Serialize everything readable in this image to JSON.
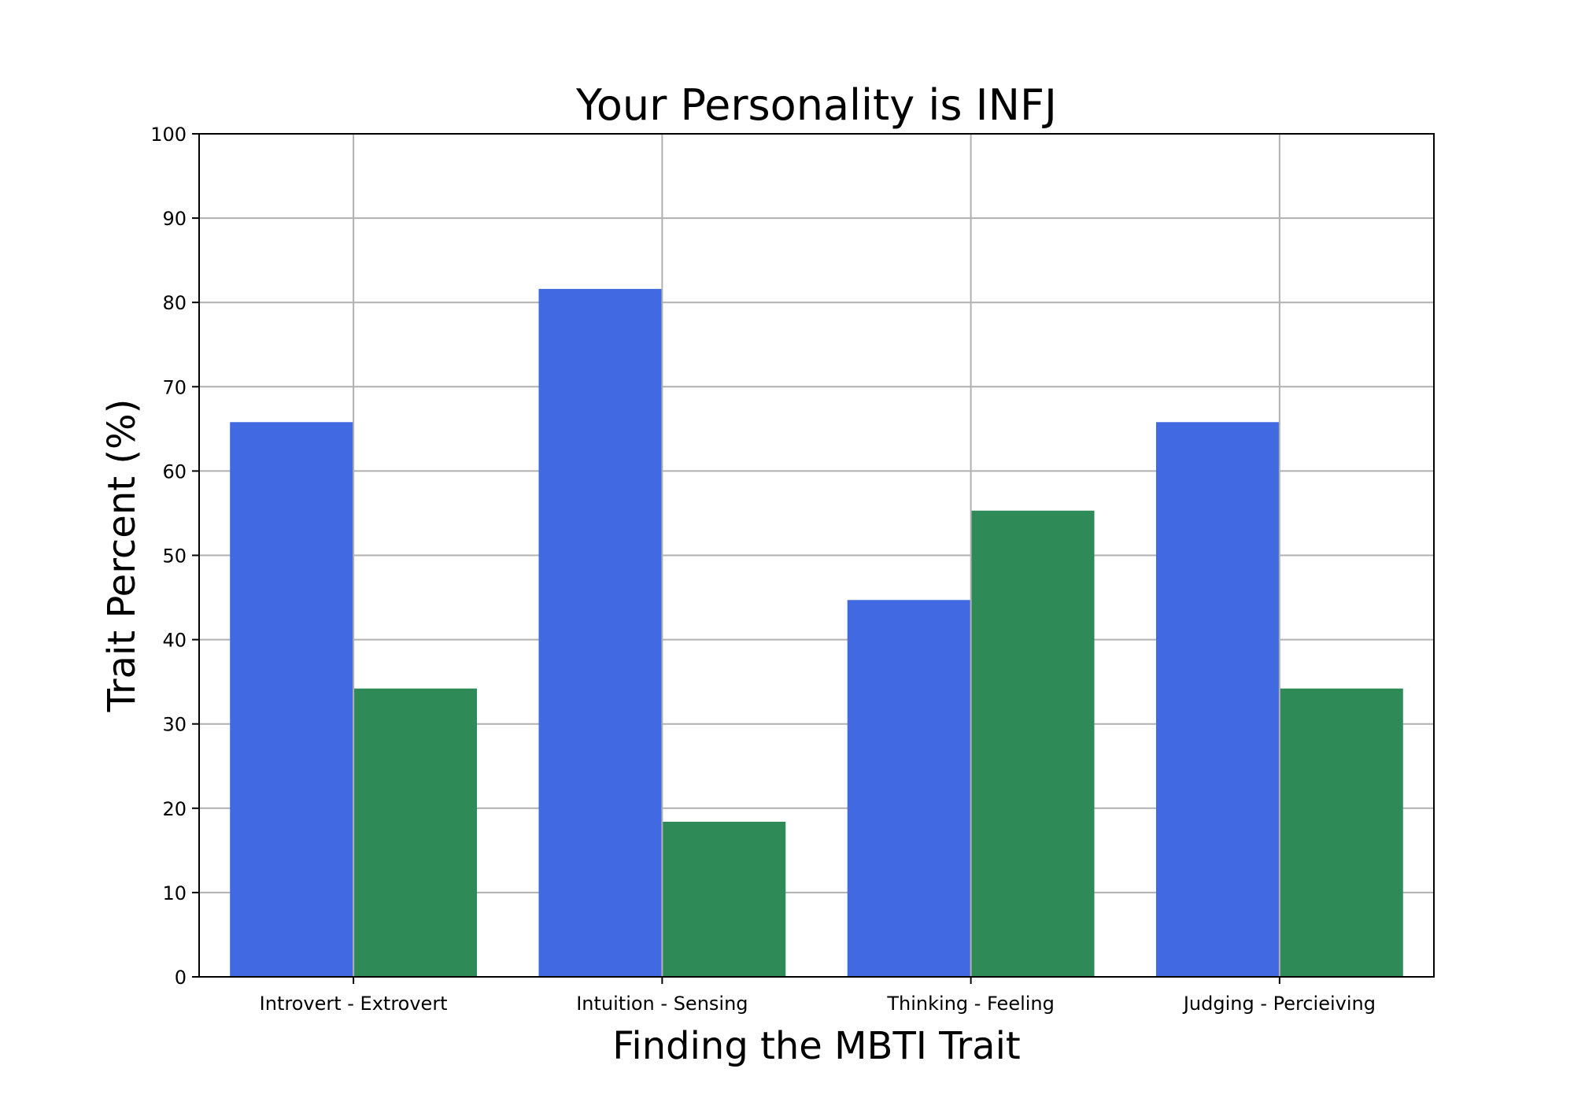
{
  "chart_data": {
    "type": "bar",
    "title": "Your Personality is INFJ",
    "xlabel": "Finding the MBTI Trait",
    "ylabel": "Trait Percent (%)",
    "ylim": [
      0,
      100
    ],
    "yticks": [
      "0",
      "10",
      "20",
      "30",
      "40",
      "50",
      "60",
      "70",
      "80",
      "90",
      "100"
    ],
    "grid": true,
    "categories": [
      "Introvert - Extrovert",
      "Intuition - Sensing",
      "Thinking - Feeling",
      "Judging - Percieiving"
    ],
    "series": [
      {
        "color": "#4169e1",
        "values": [
          65.8,
          81.6,
          44.7,
          65.8
        ]
      },
      {
        "color": "#2e8b57",
        "values": [
          34.2,
          18.4,
          55.3,
          34.2
        ]
      }
    ]
  }
}
